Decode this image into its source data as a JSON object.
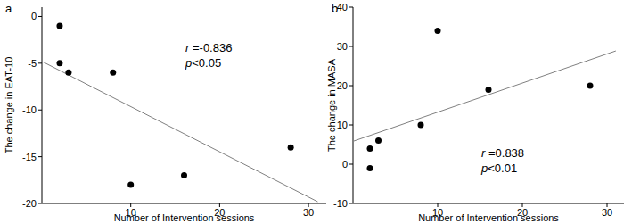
{
  "chart_data": [
    {
      "type": "scatter",
      "title": "a",
      "x_label": "Number of Intervention sessions",
      "y_label": "The change in EAT-10",
      "x": [
        2,
        2,
        3,
        8,
        10,
        16,
        28
      ],
      "values": [
        -1,
        -5,
        -6,
        -6,
        -18,
        -17,
        -14
      ],
      "color": "#000000",
      "marker": "circle",
      "annotations": [
        "r =-0.836",
        "p<0.05"
      ],
      "xlim": [
        0,
        32
      ],
      "xticks": [
        10,
        20,
        30
      ],
      "ylim": [
        -20,
        1
      ],
      "yticks": [
        -20,
        -15,
        -10,
        -5,
        0
      ],
      "grid": false
    },
    {
      "type": "scatter",
      "title": "b",
      "x_label": "Number of Intervention sessions",
      "y_label": "The change in MASA",
      "x": [
        2,
        2,
        3,
        8,
        10,
        16,
        28
      ],
      "values": [
        4,
        -1,
        6,
        10,
        34,
        19,
        20
      ],
      "color": "#000000",
      "marker": "circle",
      "annotations": [
        "r =0.838",
        "p<0.01"
      ],
      "xlim": [
        0,
        32
      ],
      "xticks": [
        10,
        20,
        30
      ],
      "ylim": [
        -10,
        40
      ],
      "yticks": [
        -10,
        0,
        10,
        20,
        30,
        40
      ],
      "grid": false
    }
  ]
}
